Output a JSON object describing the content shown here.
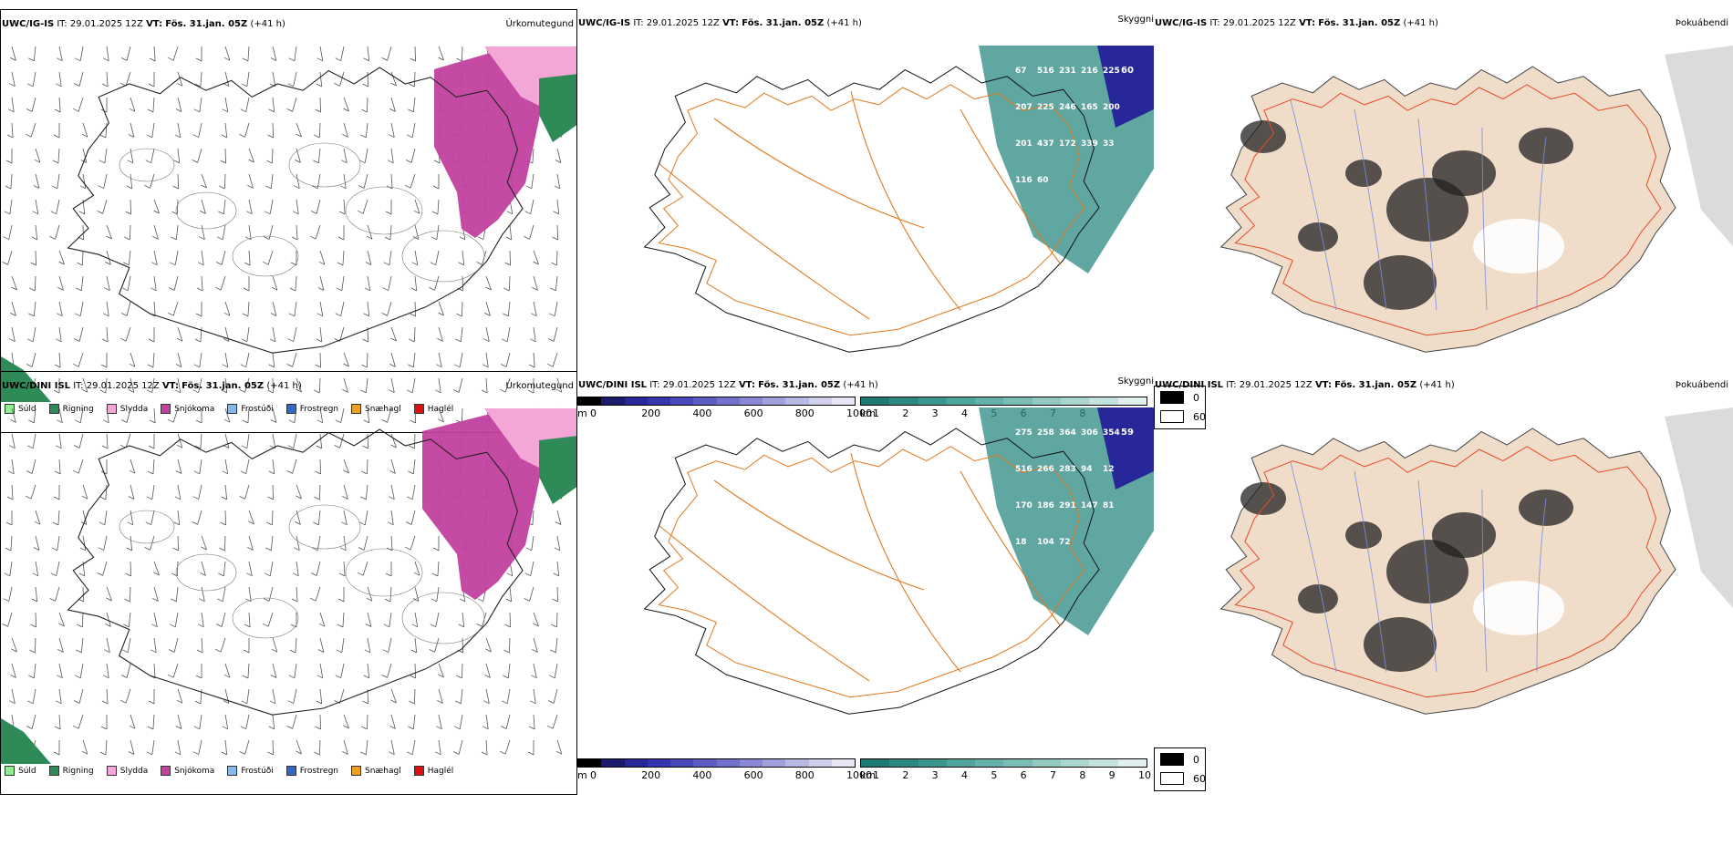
{
  "rows": [
    {
      "model": "UWC/IG-IS",
      "it": "IT: 29.01.2025 12Z",
      "vt_label": "VT:",
      "vt": "Fös. 31.jan. 05Z",
      "lead": "(+41 h)",
      "panels": {
        "precip": "Úrkomutegund",
        "cloud": "Skyggni",
        "fog": "Þokuábendi"
      },
      "cloud_labels": [
        "67",
        "516",
        "231",
        "216",
        "225",
        "207",
        "225",
        "246",
        "165",
        "200",
        "201",
        "437",
        "172",
        "339",
        "33",
        "116",
        "60"
      ],
      "snow_label": "60"
    },
    {
      "model": "UWC/DINI ISL",
      "it": "IT: 29.01.2025 12Z",
      "vt_label": "VT:",
      "vt": "Fös. 31.jan. 05Z",
      "lead": "(+41 h)",
      "panels": {
        "precip": "Úrkomutegund",
        "cloud": "Skyggni",
        "fog": "Þokuábendi"
      },
      "cloud_labels": [
        "275",
        "258",
        "364",
        "306",
        "354",
        "516",
        "266",
        "283",
        "94",
        "12",
        "170",
        "186",
        "291",
        "147",
        "81",
        "18",
        "104",
        "72"
      ],
      "snow_label": "59"
    }
  ],
  "precip_legend": [
    {
      "label": "Súld",
      "color": "#90ee90"
    },
    {
      "label": "Rigning",
      "color": "#2e8b57"
    },
    {
      "label": "Slydda",
      "color": "#f4a6d7"
    },
    {
      "label": "Snjókoma",
      "color": "#c2409f"
    },
    {
      "label": "Frostúði",
      "color": "#87b8ea"
    },
    {
      "label": "Frostregn",
      "color": "#3366cc"
    },
    {
      "label": "Snæhagl",
      "color": "#f0a020"
    },
    {
      "label": "Haglél",
      "color": "#e01010"
    }
  ],
  "cloud_bar": {
    "unit": "m",
    "ticks": [
      "0",
      "200",
      "400",
      "600",
      "800",
      "1000"
    ],
    "colors": [
      "#000000",
      "#1a1a6e",
      "#27279a",
      "#3535b0",
      "#4848bb",
      "#5c5cc4",
      "#7272cc",
      "#8888d4",
      "#a0a0dc",
      "#b8b8e4",
      "#d0d0ec",
      "#e6e6f4"
    ]
  },
  "vis_bar": {
    "unit": "km",
    "ticks": [
      "1",
      "2",
      "3",
      "4",
      "5",
      "6",
      "7",
      "8",
      "9",
      "10"
    ],
    "colors": [
      "#1b7b72",
      "#2a8a80",
      "#3a978d",
      "#4ea59b",
      "#63b1a8",
      "#7abdb5",
      "#92c9c2",
      "#abd6d0",
      "#c4e3de",
      "#e0f0ee"
    ]
  },
  "fog_legend": [
    {
      "label": "0",
      "color": "#000000"
    },
    {
      "label": "60",
      "color": "#ffffff"
    }
  ]
}
